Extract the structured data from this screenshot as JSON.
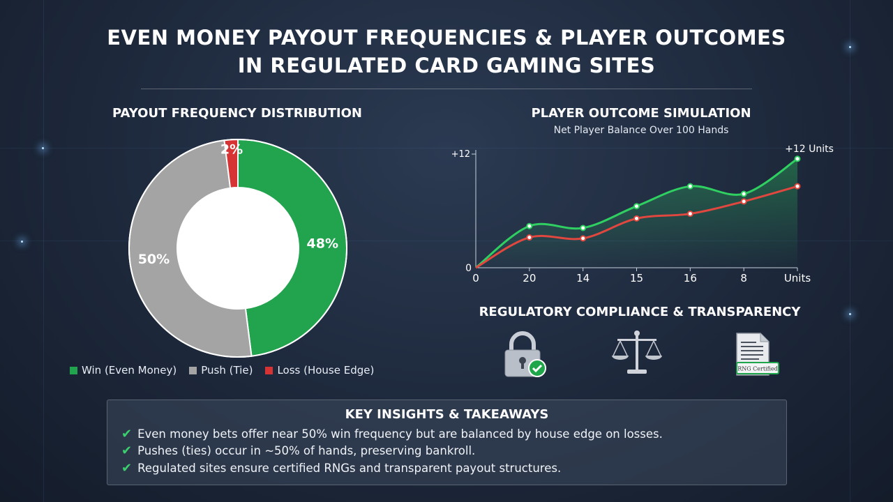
{
  "header": {
    "title_line1": "EVEN MONEY PAYOUT FREQUENCIES & PLAYER OUTCOMES",
    "title_line2": "IN REGULATED CARD GAMING SITES"
  },
  "chart_data": [
    {
      "type": "pie",
      "title": "PAYOUT FREQUENCY DISTRIBUTION",
      "categories": [
        "Win (Even Money)",
        "Push (Tie)",
        "Loss (House Edge)"
      ],
      "values": [
        48,
        50,
        2
      ],
      "labels": [
        "48%",
        "50%",
        "2%"
      ],
      "colors": [
        "#22a34e",
        "#a4a4a4",
        "#d63434"
      ],
      "legend": "bottom"
    },
    {
      "type": "line",
      "title": "PLAYER OUTCOME SIMULATION",
      "subtitle": "Net Player Balance Over 100 Hands",
      "x": [
        "0",
        "20",
        "14",
        "15",
        "16",
        "8",
        "Units"
      ],
      "y_tick_labels": [
        "+12",
        "0"
      ],
      "ylim": [
        0,
        12
      ],
      "series": [
        {
          "color": "#2fd061",
          "values": [
            0,
            4.4,
            4.2,
            6.5,
            8.6,
            7.8,
            11.5
          ]
        },
        {
          "color": "#e0473f",
          "values": [
            0,
            3.2,
            3.1,
            5.2,
            5.7,
            7.0,
            8.6
          ]
        }
      ],
      "annotation": "+12 Units",
      "grid": false
    }
  ],
  "compliance": {
    "title": "REGULATORY COMPLIANCE & TRANSPARENCY",
    "icons": [
      "lock-check-icon",
      "scales-icon",
      "certificate-document-icon"
    ],
    "certificate_text": "RNG Certified"
  },
  "insights": {
    "title": "KEY INSIGHTS & TAKEAWAYS",
    "items": [
      "Even money bets offer near 50% win frequency but are balanced by house edge on losses.",
      "Pushes (ties) occur in ~50% of hands, preserving bankroll.",
      "Regulated sites ensure certified RNGs and transparent payout structures."
    ]
  }
}
